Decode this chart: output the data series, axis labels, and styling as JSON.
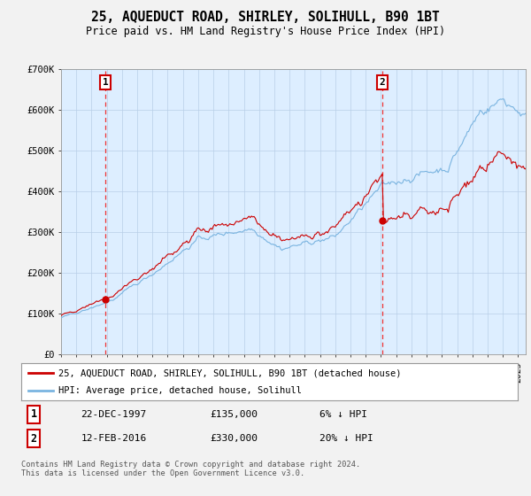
{
  "title": "25, AQUEDUCT ROAD, SHIRLEY, SOLIHULL, B90 1BT",
  "subtitle": "Price paid vs. HM Land Registry's House Price Index (HPI)",
  "sale1_price": 135000,
  "sale1_date_str": "22-DEC-1997",
  "sale1_pct": "6% ↓ HPI",
  "sale2_price": 330000,
  "sale2_date_str": "12-FEB-2016",
  "sale2_pct": "20% ↓ HPI",
  "hpi_color": "#7ab4e0",
  "sale_color": "#cc0000",
  "dashed_color": "#ee3333",
  "background_color": "#f2f2f2",
  "plot_bg_color": "#ddeeff",
  "legend_label_sale": "25, AQUEDUCT ROAD, SHIRLEY, SOLIHULL, B90 1BT (detached house)",
  "legend_label_hpi": "HPI: Average price, detached house, Solihull",
  "footer": "Contains HM Land Registry data © Crown copyright and database right 2024.\nThis data is licensed under the Open Government Licence v3.0.",
  "ylim": [
    0,
    700000
  ],
  "yticks": [
    0,
    100000,
    200000,
    300000,
    400000,
    500000,
    600000,
    700000
  ],
  "ytick_labels": [
    "£0",
    "£100K",
    "£200K",
    "£300K",
    "£400K",
    "£500K",
    "£600K",
    "£700K"
  ]
}
